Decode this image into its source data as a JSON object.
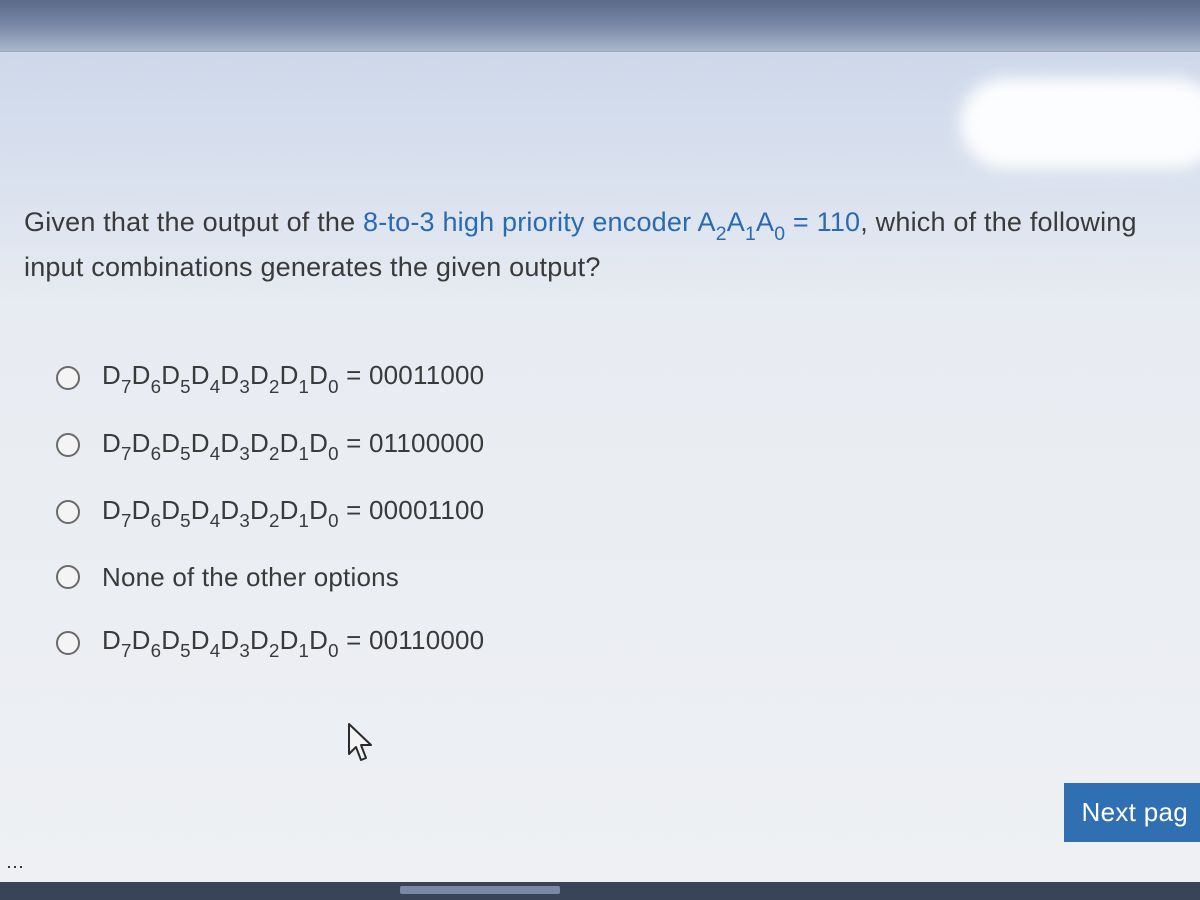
{
  "question": {
    "prefix": "Given that the output of the ",
    "highlight1": "8-to-3 high priority encoder",
    "mid": " ",
    "expr_label": "A",
    "expr_subs": [
      "2",
      "1",
      "0"
    ],
    "expr_eq": " = 110",
    "suffix": ", which of the following input combinations generates the given output?"
  },
  "d_label": "D",
  "d_subs": [
    "7",
    "6",
    "5",
    "4",
    "3",
    "2",
    "1",
    "0"
  ],
  "options": [
    {
      "has_expr": true,
      "value": "00011000"
    },
    {
      "has_expr": true,
      "value": "01100000"
    },
    {
      "has_expr": true,
      "value": "00001100"
    },
    {
      "has_expr": false,
      "plain": "None of the other options"
    },
    {
      "has_expr": true,
      "value": "00110000"
    }
  ],
  "next_button": "Next pag",
  "colors": {
    "highlight": "#2a6bb0",
    "button_bg": "#2f6fb2",
    "button_fg": "#ffffff"
  }
}
